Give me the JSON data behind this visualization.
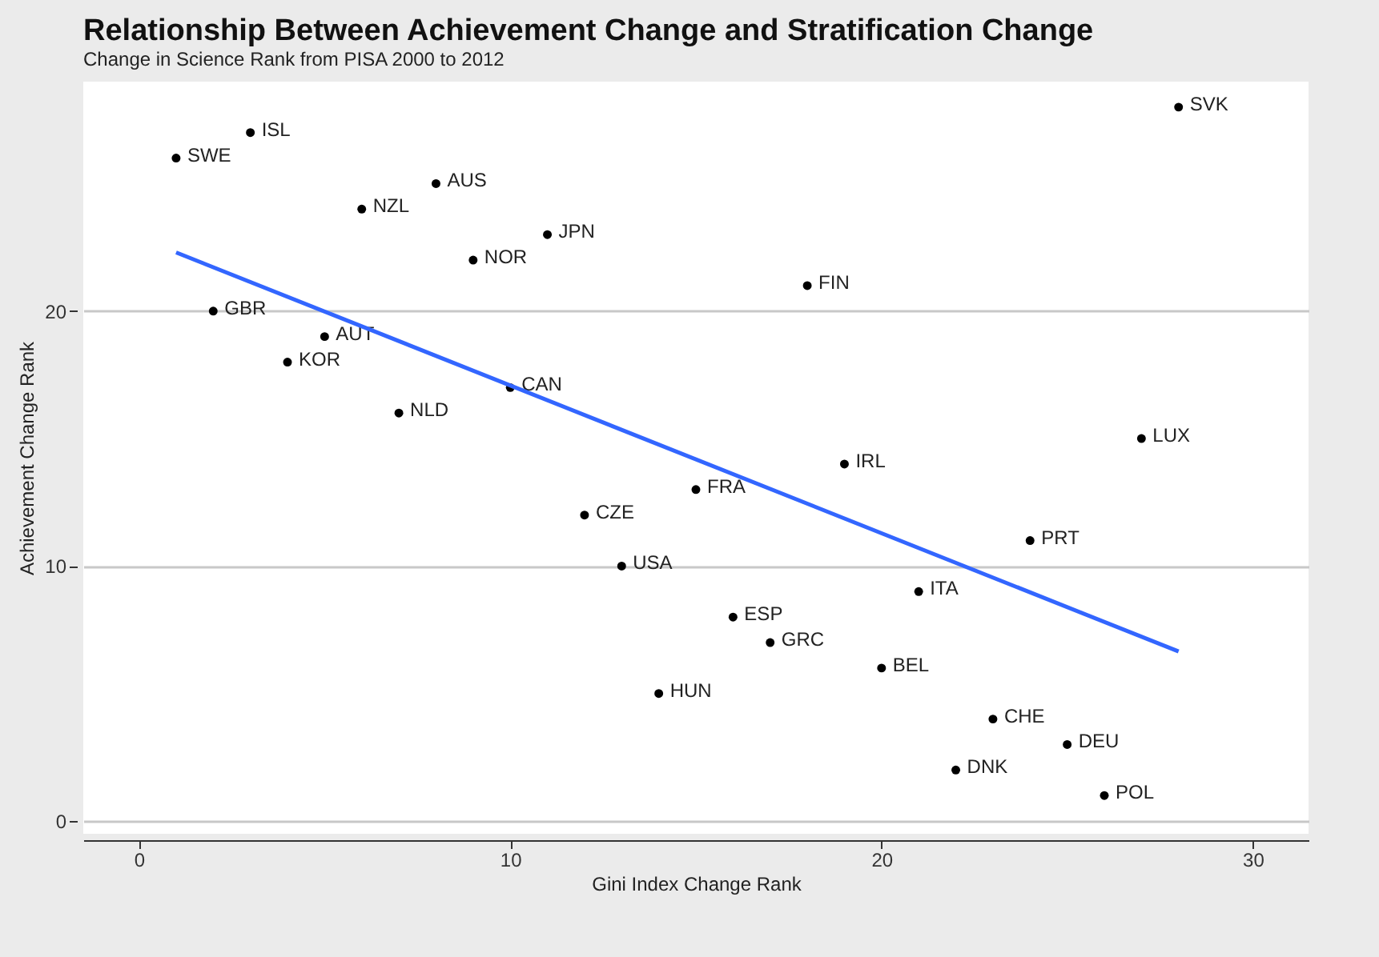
{
  "chart_data": {
    "type": "scatter",
    "title": "Relationship Between Achievement Change and Stratification Change",
    "subtitle": "Change in Science Rank from PISA 2000 to 2012",
    "xlabel": "Gini Index Change Rank",
    "ylabel": "Achievement Change Rank",
    "xlim": [
      -1.5,
      31.5
    ],
    "xticks": [
      0,
      10,
      20,
      30
    ],
    "ylim": [
      -0.5,
      29
    ],
    "yticks": [
      0,
      10,
      20
    ],
    "grid": "y",
    "series": [
      {
        "marker": "circle",
        "color": "#000000",
        "x": [
          1,
          3,
          8,
          6,
          11,
          9,
          18,
          28,
          2,
          5,
          4,
          10,
          7,
          27,
          19,
          15,
          12,
          24,
          13,
          21,
          16,
          17,
          20,
          14,
          23,
          25,
          22,
          26
        ],
        "values": [
          26,
          27,
          25,
          24,
          23,
          22,
          21,
          28,
          20,
          19,
          18,
          17,
          16,
          15,
          14,
          13,
          12,
          11,
          10,
          9,
          8,
          7,
          6,
          5,
          4,
          3,
          2,
          1
        ],
        "value_labels": [
          "SWE",
          "ISL",
          "AUS",
          "NZL",
          "JPN",
          "NOR",
          "FIN",
          "SVK",
          "GBR",
          "AUT",
          "KOR",
          "CAN",
          "NLD",
          "LUX",
          "IRL",
          "FRA",
          "CZE",
          "PRT",
          "USA",
          "ITA",
          "ESP",
          "GRC",
          "BEL",
          "HUN",
          "CHE",
          "DEU",
          "DNK",
          "POL"
        ]
      },
      {
        "type": "line",
        "color": "#3366ff",
        "x": [
          1,
          28
        ],
        "values": [
          22.3,
          6.65
        ]
      }
    ]
  }
}
